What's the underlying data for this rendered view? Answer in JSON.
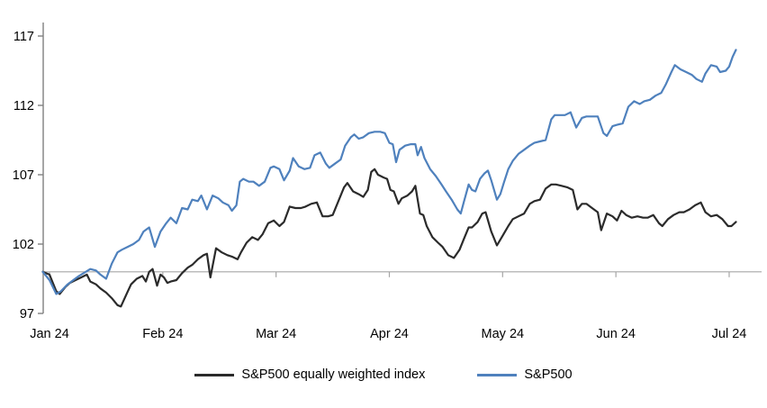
{
  "chart_data": {
    "type": "line",
    "title": "",
    "xlabel": "",
    "ylabel": "",
    "x_unit": "months since Jan 2024 (0 = Jan 24 ... 6 = Jul 24)",
    "categories": [
      "Jan 24",
      "Feb 24",
      "Mar 24",
      "Apr 24",
      "May 24",
      "Jun 24",
      "Jul 24"
    ],
    "yticks": [
      97,
      102,
      107,
      112,
      117
    ],
    "ylim": [
      97,
      118
    ],
    "baseline": 100,
    "grid": "off",
    "legend_position": "bottom",
    "axis_color": "#808080",
    "baseline_color": "#a6a6a6",
    "series": [
      {
        "name": "S&P500 equally weighted index",
        "color": "#2b2b2b",
        "points": [
          [
            -0.06,
            100.0
          ],
          [
            0.0,
            99.8
          ],
          [
            0.06,
            98.6
          ],
          [
            0.09,
            98.4
          ],
          [
            0.14,
            98.9
          ],
          [
            0.18,
            99.2
          ],
          [
            0.23,
            99.4
          ],
          [
            0.28,
            99.6
          ],
          [
            0.33,
            99.8
          ],
          [
            0.36,
            99.3
          ],
          [
            0.41,
            99.1
          ],
          [
            0.45,
            98.8
          ],
          [
            0.5,
            98.5
          ],
          [
            0.55,
            98.1
          ],
          [
            0.6,
            97.6
          ],
          [
            0.63,
            97.5
          ],
          [
            0.68,
            98.4
          ],
          [
            0.72,
            99.1
          ],
          [
            0.77,
            99.5
          ],
          [
            0.82,
            99.7
          ],
          [
            0.85,
            99.3
          ],
          [
            0.88,
            100.0
          ],
          [
            0.91,
            100.2
          ],
          [
            0.95,
            99.0
          ],
          [
            0.98,
            99.8
          ],
          [
            1.01,
            99.6
          ],
          [
            1.04,
            99.2
          ],
          [
            1.07,
            99.3
          ],
          [
            1.12,
            99.4
          ],
          [
            1.17,
            99.9
          ],
          [
            1.22,
            100.3
          ],
          [
            1.26,
            100.5
          ],
          [
            1.31,
            100.9
          ],
          [
            1.36,
            101.2
          ],
          [
            1.39,
            101.3
          ],
          [
            1.42,
            99.6
          ],
          [
            1.47,
            101.7
          ],
          [
            1.52,
            101.4
          ],
          [
            1.57,
            101.2
          ],
          [
            1.61,
            101.1
          ],
          [
            1.66,
            100.9
          ],
          [
            1.69,
            101.4
          ],
          [
            1.74,
            102.1
          ],
          [
            1.79,
            102.5
          ],
          [
            1.84,
            102.3
          ],
          [
            1.88,
            102.7
          ],
          [
            1.93,
            103.5
          ],
          [
            1.98,
            103.7
          ],
          [
            2.03,
            103.3
          ],
          [
            2.07,
            103.6
          ],
          [
            2.12,
            104.7
          ],
          [
            2.17,
            104.6
          ],
          [
            2.22,
            104.6
          ],
          [
            2.26,
            104.7
          ],
          [
            2.31,
            104.9
          ],
          [
            2.36,
            105.0
          ],
          [
            2.41,
            104.0
          ],
          [
            2.46,
            104.0
          ],
          [
            2.5,
            104.1
          ],
          [
            2.55,
            105.1
          ],
          [
            2.6,
            106.1
          ],
          [
            2.63,
            106.4
          ],
          [
            2.68,
            105.8
          ],
          [
            2.73,
            105.6
          ],
          [
            2.77,
            105.4
          ],
          [
            2.81,
            105.9
          ],
          [
            2.84,
            107.2
          ],
          [
            2.87,
            107.4
          ],
          [
            2.9,
            107.0
          ],
          [
            2.95,
            106.8
          ],
          [
            2.98,
            106.7
          ],
          [
            3.01,
            105.9
          ],
          [
            3.04,
            105.8
          ],
          [
            3.08,
            104.9
          ],
          [
            3.11,
            105.3
          ],
          [
            3.16,
            105.5
          ],
          [
            3.2,
            105.8
          ],
          [
            3.23,
            106.2
          ],
          [
            3.27,
            104.2
          ],
          [
            3.3,
            104.1
          ],
          [
            3.33,
            103.3
          ],
          [
            3.38,
            102.5
          ],
          [
            3.43,
            102.1
          ],
          [
            3.47,
            101.8
          ],
          [
            3.52,
            101.2
          ],
          [
            3.57,
            101.0
          ],
          [
            3.62,
            101.6
          ],
          [
            3.66,
            102.4
          ],
          [
            3.7,
            103.2
          ],
          [
            3.73,
            103.2
          ],
          [
            3.78,
            103.6
          ],
          [
            3.82,
            104.2
          ],
          [
            3.85,
            104.3
          ],
          [
            3.9,
            102.9
          ],
          [
            3.95,
            101.9
          ],
          [
            4.0,
            102.6
          ],
          [
            4.05,
            103.3
          ],
          [
            4.09,
            103.8
          ],
          [
            4.14,
            104.0
          ],
          [
            4.19,
            104.2
          ],
          [
            4.24,
            104.9
          ],
          [
            4.28,
            105.1
          ],
          [
            4.33,
            105.2
          ],
          [
            4.38,
            106.0
          ],
          [
            4.43,
            106.3
          ],
          [
            4.47,
            106.3
          ],
          [
            4.52,
            106.2
          ],
          [
            4.57,
            106.1
          ],
          [
            4.62,
            105.9
          ],
          [
            4.66,
            104.5
          ],
          [
            4.7,
            104.9
          ],
          [
            4.74,
            104.9
          ],
          [
            4.79,
            104.6
          ],
          [
            4.84,
            104.3
          ],
          [
            4.87,
            103.0
          ],
          [
            4.92,
            104.2
          ],
          [
            4.97,
            104.0
          ],
          [
            5.01,
            103.7
          ],
          [
            5.05,
            104.4
          ],
          [
            5.09,
            104.1
          ],
          [
            5.14,
            103.9
          ],
          [
            5.19,
            104.0
          ],
          [
            5.24,
            103.9
          ],
          [
            5.28,
            103.9
          ],
          [
            5.33,
            104.1
          ],
          [
            5.38,
            103.5
          ],
          [
            5.41,
            103.3
          ],
          [
            5.46,
            103.8
          ],
          [
            5.51,
            104.1
          ],
          [
            5.56,
            104.3
          ],
          [
            5.6,
            104.3
          ],
          [
            5.65,
            104.5
          ],
          [
            5.7,
            104.8
          ],
          [
            5.75,
            105.0
          ],
          [
            5.79,
            104.3
          ],
          [
            5.84,
            104.0
          ],
          [
            5.89,
            104.1
          ],
          [
            5.94,
            103.8
          ],
          [
            5.99,
            103.3
          ],
          [
            6.02,
            103.3
          ],
          [
            6.06,
            103.6
          ]
        ]
      },
      {
        "name": "S&P500",
        "color": "#4f81bd",
        "points": [
          [
            -0.06,
            100.0
          ],
          [
            0.0,
            99.4
          ],
          [
            0.06,
            98.4
          ],
          [
            0.1,
            98.6
          ],
          [
            0.16,
            99.1
          ],
          [
            0.21,
            99.4
          ],
          [
            0.26,
            99.7
          ],
          [
            0.32,
            100.0
          ],
          [
            0.36,
            100.2
          ],
          [
            0.41,
            100.1
          ],
          [
            0.45,
            99.8
          ],
          [
            0.5,
            99.5
          ],
          [
            0.55,
            100.6
          ],
          [
            0.6,
            101.4
          ],
          [
            0.64,
            101.6
          ],
          [
            0.69,
            101.8
          ],
          [
            0.74,
            102.0
          ],
          [
            0.79,
            102.3
          ],
          [
            0.83,
            102.9
          ],
          [
            0.88,
            103.2
          ],
          [
            0.93,
            101.8
          ],
          [
            0.98,
            102.9
          ],
          [
            1.03,
            103.5
          ],
          [
            1.07,
            103.9
          ],
          [
            1.12,
            103.5
          ],
          [
            1.17,
            104.6
          ],
          [
            1.22,
            104.5
          ],
          [
            1.26,
            105.2
          ],
          [
            1.31,
            105.1
          ],
          [
            1.34,
            105.5
          ],
          [
            1.39,
            104.5
          ],
          [
            1.44,
            105.5
          ],
          [
            1.49,
            105.3
          ],
          [
            1.53,
            105.0
          ],
          [
            1.58,
            104.8
          ],
          [
            1.61,
            104.4
          ],
          [
            1.65,
            104.8
          ],
          [
            1.68,
            106.5
          ],
          [
            1.71,
            106.7
          ],
          [
            1.76,
            106.5
          ],
          [
            1.8,
            106.5
          ],
          [
            1.85,
            106.2
          ],
          [
            1.9,
            106.5
          ],
          [
            1.95,
            107.5
          ],
          [
            1.98,
            107.6
          ],
          [
            2.03,
            107.4
          ],
          [
            2.07,
            106.6
          ],
          [
            2.12,
            107.3
          ],
          [
            2.15,
            108.2
          ],
          [
            2.2,
            107.6
          ],
          [
            2.25,
            107.4
          ],
          [
            2.3,
            107.5
          ],
          [
            2.34,
            108.4
          ],
          [
            2.39,
            108.6
          ],
          [
            2.44,
            107.8
          ],
          [
            2.47,
            107.5
          ],
          [
            2.52,
            107.8
          ],
          [
            2.57,
            108.1
          ],
          [
            2.61,
            109.1
          ],
          [
            2.66,
            109.7
          ],
          [
            2.69,
            109.9
          ],
          [
            2.73,
            109.6
          ],
          [
            2.77,
            109.7
          ],
          [
            2.82,
            110.0
          ],
          [
            2.87,
            110.1
          ],
          [
            2.92,
            110.1
          ],
          [
            2.96,
            110.0
          ],
          [
            3.0,
            109.3
          ],
          [
            3.03,
            109.2
          ],
          [
            3.06,
            107.9
          ],
          [
            3.09,
            108.8
          ],
          [
            3.14,
            109.1
          ],
          [
            3.19,
            109.2
          ],
          [
            3.23,
            109.2
          ],
          [
            3.25,
            108.4
          ],
          [
            3.28,
            109.0
          ],
          [
            3.31,
            108.2
          ],
          [
            3.36,
            107.4
          ],
          [
            3.41,
            106.9
          ],
          [
            3.46,
            106.3
          ],
          [
            3.5,
            105.8
          ],
          [
            3.55,
            105.2
          ],
          [
            3.6,
            104.5
          ],
          [
            3.63,
            104.2
          ],
          [
            3.66,
            105.1
          ],
          [
            3.7,
            106.3
          ],
          [
            3.73,
            105.9
          ],
          [
            3.76,
            105.8
          ],
          [
            3.8,
            106.7
          ],
          [
            3.84,
            107.1
          ],
          [
            3.87,
            107.3
          ],
          [
            3.9,
            106.6
          ],
          [
            3.95,
            105.2
          ],
          [
            3.98,
            105.6
          ],
          [
            4.01,
            106.4
          ],
          [
            4.05,
            107.4
          ],
          [
            4.09,
            108.0
          ],
          [
            4.14,
            108.5
          ],
          [
            4.19,
            108.8
          ],
          [
            4.24,
            109.1
          ],
          [
            4.28,
            109.3
          ],
          [
            4.33,
            109.4
          ],
          [
            4.38,
            109.5
          ],
          [
            4.43,
            111.0
          ],
          [
            4.46,
            111.3
          ],
          [
            4.51,
            111.3
          ],
          [
            4.55,
            111.3
          ],
          [
            4.6,
            111.5
          ],
          [
            4.65,
            110.4
          ],
          [
            4.7,
            111.1
          ],
          [
            4.74,
            111.2
          ],
          [
            4.79,
            111.2
          ],
          [
            4.84,
            111.2
          ],
          [
            4.89,
            110.0
          ],
          [
            4.92,
            109.8
          ],
          [
            4.97,
            110.5
          ],
          [
            5.01,
            110.6
          ],
          [
            5.06,
            110.7
          ],
          [
            5.11,
            111.9
          ],
          [
            5.16,
            112.3
          ],
          [
            5.21,
            112.1
          ],
          [
            5.25,
            112.3
          ],
          [
            5.3,
            112.4
          ],
          [
            5.35,
            112.7
          ],
          [
            5.4,
            112.9
          ],
          [
            5.44,
            113.5
          ],
          [
            5.49,
            114.4
          ],
          [
            5.52,
            114.9
          ],
          [
            5.57,
            114.6
          ],
          [
            5.62,
            114.4
          ],
          [
            5.67,
            114.2
          ],
          [
            5.71,
            113.9
          ],
          [
            5.76,
            113.7
          ],
          [
            5.79,
            114.3
          ],
          [
            5.84,
            114.9
          ],
          [
            5.89,
            114.8
          ],
          [
            5.92,
            114.4
          ],
          [
            5.97,
            114.5
          ],
          [
            6.0,
            114.8
          ],
          [
            6.03,
            115.5
          ],
          [
            6.06,
            116.0
          ]
        ]
      }
    ],
    "legend": [
      {
        "label": "S&P500 equally weighted index",
        "color": "#2b2b2b"
      },
      {
        "label": "S&P500",
        "color": "#4f81bd"
      }
    ]
  }
}
